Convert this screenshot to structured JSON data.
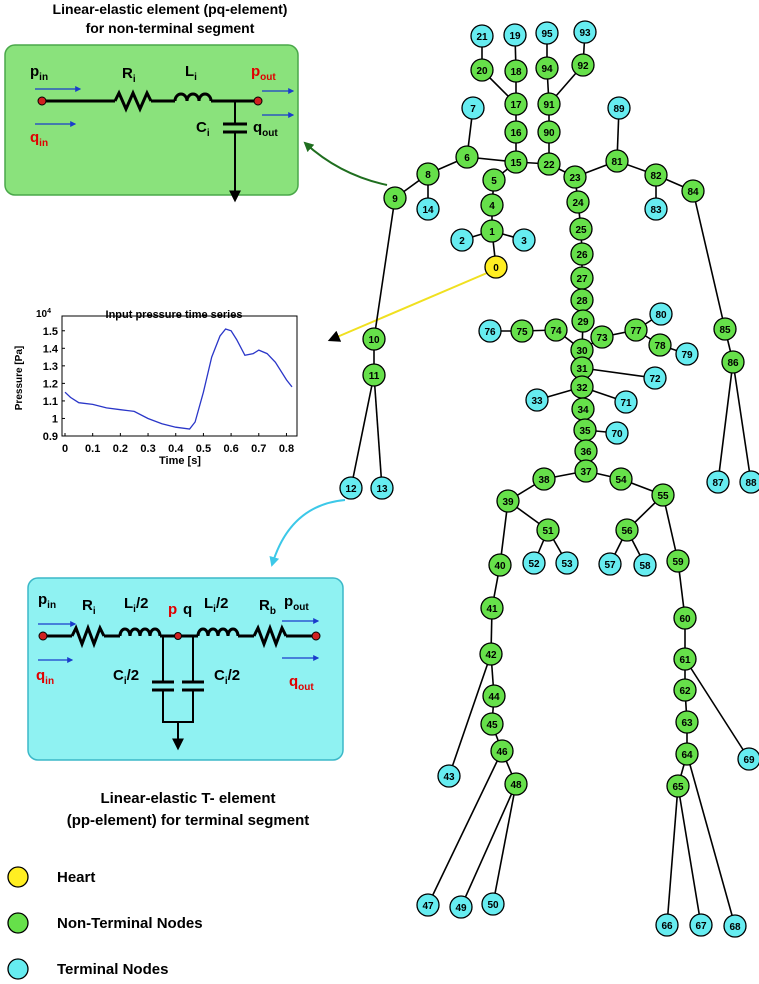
{
  "top_circuit": {
    "title": [
      "Linear-elastic element (pq-element)",
      "for non-terminal segment"
    ],
    "labels": [
      {
        "text": "p",
        "sub": "in",
        "color": "#000000"
      },
      {
        "text": "q",
        "sub": "in",
        "color": "#e00000"
      },
      {
        "text": "R",
        "sub": "i",
        "color": "#000000"
      },
      {
        "text": "L",
        "sub": "i",
        "color": "#000000"
      },
      {
        "text": "p",
        "sub": "out",
        "color": "#e00000"
      },
      {
        "text": "q",
        "sub": "out",
        "color": "#000000"
      },
      {
        "text": "C",
        "sub": "i",
        "color": "#000000"
      }
    ]
  },
  "bottom_circuit": {
    "caption": [
      "Linear-elastic T- element",
      "(pp-element) for terminal segment"
    ],
    "labels": [
      {
        "text": "p",
        "sub": "in",
        "color": "#000000"
      },
      {
        "text": "q",
        "sub": "in",
        "color": "#e00000"
      },
      {
        "text": "R",
        "sub": "i",
        "color": "#000000"
      },
      {
        "text": "L",
        "sub": "i",
        "suffix": "/2",
        "color": "#000000"
      },
      {
        "text": "p",
        "color": "#e00000"
      },
      {
        "text": "q",
        "color": "#000000"
      },
      {
        "text": "L",
        "sub": "i",
        "suffix": "/2",
        "color": "#000000"
      },
      {
        "text": "R",
        "sub": "b",
        "color": "#000000"
      },
      {
        "text": "p",
        "sub": "out",
        "color": "#000000"
      },
      {
        "text": "q",
        "sub": "out",
        "color": "#e00000"
      },
      {
        "text": "C",
        "sub": "i",
        "suffix": "/2",
        "color": "#000000"
      },
      {
        "text": "C",
        "sub": "i",
        "suffix": "/2",
        "color": "#000000"
      }
    ]
  },
  "pressure_chart": {
    "type": "line",
    "title": "Input pressure time series",
    "multiplier": {
      "text": "10",
      "sup": "4"
    },
    "x_label": "Time [s]",
    "y_label": "Pressure [Pa]",
    "color": "#2a36c8",
    "x": [
      0,
      0.02,
      0.05,
      0.1,
      0.15,
      0.2,
      0.25,
      0.3,
      0.35,
      0.4,
      0.45,
      0.47,
      0.5,
      0.53,
      0.56,
      0.58,
      0.6,
      0.62,
      0.65,
      0.68,
      0.7,
      0.73,
      0.76,
      0.8,
      0.82
    ],
    "values": [
      1.15,
      1.12,
      1.09,
      1.08,
      1.06,
      1.05,
      1.04,
      1.0,
      0.97,
      0.95,
      0.94,
      0.98,
      1.15,
      1.35,
      1.47,
      1.51,
      1.5,
      1.45,
      1.36,
      1.37,
      1.39,
      1.37,
      1.32,
      1.22,
      1.18
    ],
    "xlim": [
      0,
      0.82
    ],
    "ylim": [
      0.9,
      1.55
    ],
    "xticks": [
      0,
      0.1,
      0.2,
      0.3,
      0.4,
      0.5,
      0.6,
      0.7,
      0.8
    ],
    "yticks": [
      0.9,
      1,
      1.1,
      1.2,
      1.3,
      1.4,
      1.5
    ]
  },
  "colors": {
    "heart": "#ffee22",
    "nonterminal": "#66e04a",
    "terminal": "#66ecf0"
  },
  "nodes": [
    {
      "label": "0",
      "kind": "heart"
    },
    {
      "label": "1",
      "kind": "nonterminal"
    },
    {
      "label": "2",
      "kind": "terminal"
    },
    {
      "label": "3",
      "kind": "terminal"
    },
    {
      "label": "4",
      "kind": "nonterminal"
    },
    {
      "label": "5",
      "kind": "nonterminal"
    },
    {
      "label": "6",
      "kind": "nonterminal"
    },
    {
      "label": "7",
      "kind": "terminal"
    },
    {
      "label": "8",
      "kind": "nonterminal"
    },
    {
      "label": "9",
      "kind": "nonterminal"
    },
    {
      "label": "10",
      "kind": "nonterminal"
    },
    {
      "label": "11",
      "kind": "nonterminal"
    },
    {
      "label": "12",
      "kind": "terminal"
    },
    {
      "label": "13",
      "kind": "terminal"
    },
    {
      "label": "14",
      "kind": "terminal"
    },
    {
      "label": "15",
      "kind": "nonterminal"
    },
    {
      "label": "16",
      "kind": "nonterminal"
    },
    {
      "label": "17",
      "kind": "nonterminal"
    },
    {
      "label": "18",
      "kind": "nonterminal"
    },
    {
      "label": "19",
      "kind": "terminal"
    },
    {
      "label": "20",
      "kind": "nonterminal"
    },
    {
      "label": "21",
      "kind": "terminal"
    },
    {
      "label": "22",
      "kind": "nonterminal"
    },
    {
      "label": "23",
      "kind": "nonterminal"
    },
    {
      "label": "24",
      "kind": "nonterminal"
    },
    {
      "label": "25",
      "kind": "nonterminal"
    },
    {
      "label": "26",
      "kind": "nonterminal"
    },
    {
      "label": "27",
      "kind": "nonterminal"
    },
    {
      "label": "28",
      "kind": "nonterminal"
    },
    {
      "label": "29",
      "kind": "nonterminal"
    },
    {
      "label": "30",
      "kind": "nonterminal"
    },
    {
      "label": "31",
      "kind": "nonterminal"
    },
    {
      "label": "32",
      "kind": "nonterminal"
    },
    {
      "label": "33",
      "kind": "terminal"
    },
    {
      "label": "34",
      "kind": "nonterminal"
    },
    {
      "label": "35",
      "kind": "nonterminal"
    },
    {
      "label": "36",
      "kind": "nonterminal"
    },
    {
      "label": "37",
      "kind": "nonterminal"
    },
    {
      "label": "38",
      "kind": "nonterminal"
    },
    {
      "label": "39",
      "kind": "nonterminal"
    },
    {
      "label": "40",
      "kind": "nonterminal"
    },
    {
      "label": "41",
      "kind": "nonterminal"
    },
    {
      "label": "42",
      "kind": "nonterminal"
    },
    {
      "label": "43",
      "kind": "terminal"
    },
    {
      "label": "44",
      "kind": "nonterminal"
    },
    {
      "label": "45",
      "kind": "nonterminal"
    },
    {
      "label": "46",
      "kind": "nonterminal"
    },
    {
      "label": "47",
      "kind": "terminal"
    },
    {
      "label": "48",
      "kind": "nonterminal"
    },
    {
      "label": "49",
      "kind": "terminal"
    },
    {
      "label": "50",
      "kind": "terminal"
    },
    {
      "label": "51",
      "kind": "nonterminal"
    },
    {
      "label": "52",
      "kind": "terminal"
    },
    {
      "label": "53",
      "kind": "terminal"
    },
    {
      "label": "54",
      "kind": "nonterminal"
    },
    {
      "label": "55",
      "kind": "nonterminal"
    },
    {
      "label": "56",
      "kind": "nonterminal"
    },
    {
      "label": "57",
      "kind": "terminal"
    },
    {
      "label": "58",
      "kind": "terminal"
    },
    {
      "label": "59",
      "kind": "nonterminal"
    },
    {
      "label": "60",
      "kind": "nonterminal"
    },
    {
      "label": "61",
      "kind": "nonterminal"
    },
    {
      "label": "62",
      "kind": "nonterminal"
    },
    {
      "label": "63",
      "kind": "nonterminal"
    },
    {
      "label": "64",
      "kind": "nonterminal"
    },
    {
      "label": "65",
      "kind": "nonterminal"
    },
    {
      "label": "66",
      "kind": "terminal"
    },
    {
      "label": "67",
      "kind": "terminal"
    },
    {
      "label": "68",
      "kind": "terminal"
    },
    {
      "label": "69",
      "kind": "terminal"
    },
    {
      "label": "70",
      "kind": "terminal"
    },
    {
      "label": "71",
      "kind": "terminal"
    },
    {
      "label": "72",
      "kind": "terminal"
    },
    {
      "label": "73",
      "kind": "nonterminal"
    },
    {
      "label": "74",
      "kind": "nonterminal"
    },
    {
      "label": "75",
      "kind": "nonterminal"
    },
    {
      "label": "76",
      "kind": "terminal"
    },
    {
      "label": "77",
      "kind": "nonterminal"
    },
    {
      "label": "78",
      "kind": "nonterminal"
    },
    {
      "label": "79",
      "kind": "terminal"
    },
    {
      "label": "80",
      "kind": "terminal"
    },
    {
      "label": "81",
      "kind": "nonterminal"
    },
    {
      "label": "82",
      "kind": "nonterminal"
    },
    {
      "label": "83",
      "kind": "terminal"
    },
    {
      "label": "84",
      "kind": "nonterminal"
    },
    {
      "label": "85",
      "kind": "nonterminal"
    },
    {
      "label": "86",
      "kind": "nonterminal"
    },
    {
      "label": "87",
      "kind": "terminal"
    },
    {
      "label": "88",
      "kind": "terminal"
    },
    {
      "label": "89",
      "kind": "terminal"
    },
    {
      "label": "90",
      "kind": "nonterminal"
    },
    {
      "label": "91",
      "kind": "nonterminal"
    },
    {
      "label": "92",
      "kind": "nonterminal"
    },
    {
      "label": "93",
      "kind": "terminal"
    },
    {
      "label": "94",
      "kind": "nonterminal"
    },
    {
      "label": "95",
      "kind": "terminal"
    }
  ],
  "legend": [
    {
      "label": "Heart",
      "kind": "heart"
    },
    {
      "label": "Non-Terminal Nodes",
      "kind": "nonterminal"
    },
    {
      "label": "Terminal Nodes",
      "kind": "terminal"
    }
  ]
}
